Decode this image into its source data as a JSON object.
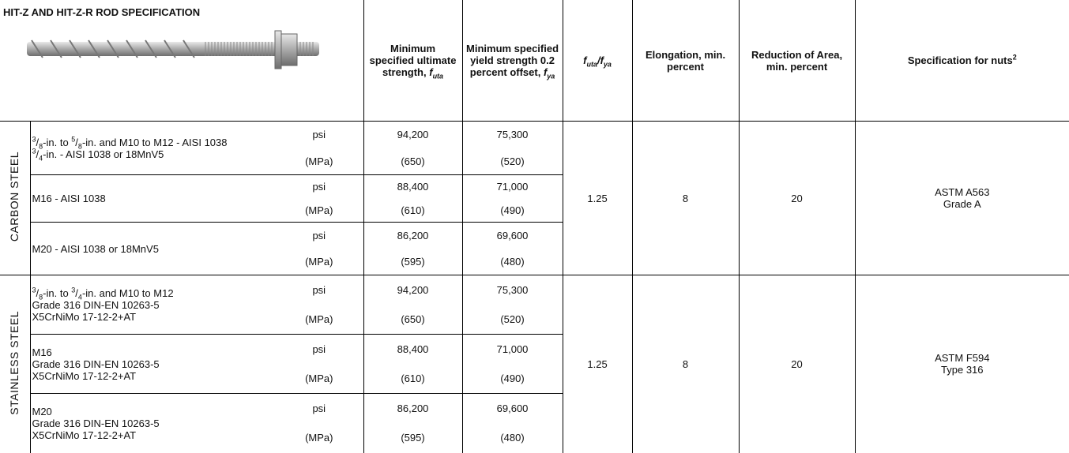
{
  "header": {
    "title": "HIT-Z AND HIT-Z-R ROD SPECIFICATION",
    "columns": [
      [
        "Minimum specified ultimate strength, ",
        {
          "base": "f",
          "sub": "uta"
        }
      ],
      [
        "Minimum specified yield strength 0.2 percent offset, ",
        {
          "base": "f",
          "sub": "ya"
        }
      ],
      [
        {
          "base": "f",
          "sub": "uta"
        },
        "/",
        {
          "base": "f",
          "sub": "ya"
        }
      ],
      [
        "Elongation, min. percent"
      ],
      [
        "Reduction of Area, min. percent"
      ],
      [
        {
          "text": "Specification for nuts",
          "sup": "2"
        }
      ]
    ]
  },
  "groups": [
    {
      "label": "CARBON STEEL",
      "rows": [
        {
          "description": [
            [
              {
                "num": "3",
                "sep": "/",
                "den": "8"
              },
              "-in. to ",
              {
                "num": "5",
                "sep": "/",
                "den": "8"
              },
              "-in. and M10 to M12 - AISI 1038"
            ],
            [
              {
                "num": "3",
                "sep": "/",
                "den": "4"
              },
              "-in. - AISI 1038 or 18MnV5"
            ]
          ],
          "units": [
            "psi",
            "(MPa)"
          ],
          "ultimate": [
            "94,200",
            "(650)"
          ],
          "yield": [
            "75,300",
            "(520)"
          ]
        },
        {
          "description": [
            [
              "M16 - AISI 1038"
            ]
          ],
          "units": [
            "psi",
            "(MPa)"
          ],
          "ultimate": [
            "88,400",
            "(610)"
          ],
          "yield": [
            "71,000",
            "(490)"
          ]
        },
        {
          "description": [
            [
              "M20 - AISI 1038 or 18MnV5"
            ]
          ],
          "units": [
            "psi",
            "(MPa)"
          ],
          "ultimate": [
            "86,200",
            "(595)"
          ],
          "yield": [
            "69,600",
            "(480)"
          ]
        }
      ],
      "ratio": "1.25",
      "elongation": "8",
      "reduction": "20",
      "nuts": [
        "ASTM A563",
        "Grade A"
      ]
    },
    {
      "label": "STAINLESS STEEL",
      "rows": [
        {
          "description": [
            [
              {
                "num": "3",
                "sep": "/",
                "den": "8"
              },
              "-in. to ",
              {
                "num": "3",
                "sep": "/",
                "den": "4"
              },
              "-in. and M10 to M12"
            ],
            [
              "Grade 316 DIN-EN 10263-5"
            ],
            [
              "X5CrNiMo 17-12-2+AT"
            ]
          ],
          "units": [
            "psi",
            "(MPa)"
          ],
          "ultimate": [
            "94,200",
            "(650)"
          ],
          "yield": [
            "75,300",
            "(520)"
          ]
        },
        {
          "description": [
            [
              "M16"
            ],
            [
              "Grade 316 DIN-EN 10263-5"
            ],
            [
              "X5CrNiMo 17-12-2+AT"
            ]
          ],
          "units": [
            "psi",
            "(MPa)"
          ],
          "ultimate": [
            "88,400",
            "(610)"
          ],
          "yield": [
            "71,000",
            "(490)"
          ]
        },
        {
          "description": [
            [
              "M20"
            ],
            [
              "Grade 316 DIN-EN 10263-5"
            ],
            [
              "X5CrNiMo 17-12-2+AT"
            ]
          ],
          "units": [
            "psi",
            "(MPa)"
          ],
          "ultimate": [
            "86,200",
            "(595)"
          ],
          "yield": [
            "69,600",
            "(480)"
          ]
        }
      ],
      "ratio": "1.25",
      "elongation": "8",
      "reduction": "20",
      "nuts": [
        "ASTM F594",
        "Type 316"
      ]
    }
  ]
}
